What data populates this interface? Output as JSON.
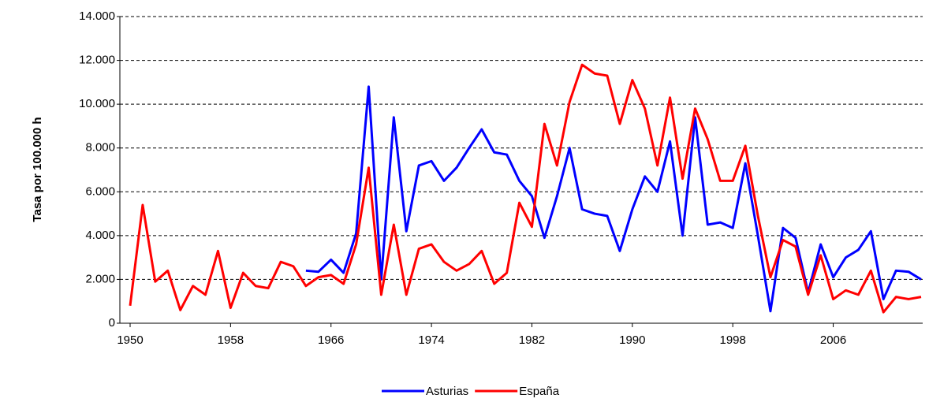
{
  "chart_data": {
    "type": "line",
    "y_axis_label": "Tasa por 100.000 h",
    "x": [
      1950,
      1951,
      1952,
      1953,
      1954,
      1955,
      1956,
      1957,
      1958,
      1959,
      1960,
      1961,
      1962,
      1963,
      1964,
      1965,
      1966,
      1967,
      1968,
      1969,
      1970,
      1971,
      1972,
      1973,
      1974,
      1975,
      1976,
      1977,
      1978,
      1979,
      1980,
      1981,
      1982,
      1983,
      1984,
      1985,
      1986,
      1987,
      1988,
      1989,
      1990,
      1991,
      1992,
      1993,
      1994,
      1995,
      1996,
      1997,
      1998,
      1999,
      2000,
      2001,
      2002,
      2003,
      2004,
      2005,
      2006,
      2007,
      2008,
      2009,
      2010,
      2011,
      2012,
      2013
    ],
    "series": [
      {
        "name": "Asturias",
        "color": "#0000ff",
        "values": [
          null,
          null,
          null,
          null,
          null,
          null,
          null,
          null,
          null,
          null,
          null,
          null,
          null,
          null,
          2400,
          2350,
          2900,
          2300,
          4100,
          10800,
          2000,
          9400,
          4200,
          7200,
          7400,
          6500,
          7100,
          8000,
          8850,
          7800,
          7700,
          6500,
          5800,
          3900,
          5800,
          8000,
          5200,
          5000,
          4900,
          3300,
          5200,
          6700,
          6000,
          8300,
          4000,
          9400,
          4500,
          4600,
          4350,
          7300,
          4000,
          550,
          4350,
          3900,
          1400,
          3600,
          2100,
          3000,
          3350,
          4200,
          1100,
          2400,
          2350,
          2000
        ]
      },
      {
        "name": "España",
        "color": "#ff0000",
        "values": [
          800,
          5400,
          1900,
          2400,
          600,
          1700,
          1300,
          3300,
          700,
          2300,
          1700,
          1600,
          2800,
          2600,
          1700,
          2100,
          2200,
          1800,
          3600,
          7100,
          1300,
          4500,
          1300,
          3400,
          3600,
          2800,
          2400,
          2700,
          3300,
          1800,
          2300,
          5500,
          4400,
          9100,
          7200,
          10100,
          11800,
          11400,
          11300,
          9100,
          11100,
          9800,
          7200,
          10300,
          6600,
          9800,
          8400,
          6500,
          6500,
          8100,
          4900,
          2100,
          3800,
          3500,
          1300,
          3100,
          1100,
          1500,
          1300,
          2400,
          500,
          1200,
          1100,
          1200
        ]
      }
    ],
    "xlim": [
      1950,
      2013
    ],
    "xticks": [
      1950,
      1958,
      1966,
      1974,
      1982,
      1990,
      1998,
      2006
    ],
    "ylim": [
      0,
      14000
    ],
    "yticks": [
      0,
      {
        "value": 2000,
        "label": "2.000"
      },
      {
        "value": 4000,
        "label": "4.000"
      },
      {
        "value": 6000,
        "label": "6.000"
      },
      {
        "value": 8000,
        "label": "8.000"
      },
      {
        "value": 10000,
        "label": "10.000"
      },
      {
        "value": 12000,
        "label": "12.000"
      },
      {
        "value": 14000,
        "label": "14.000"
      }
    ],
    "grid": true,
    "legend": "bottom"
  }
}
